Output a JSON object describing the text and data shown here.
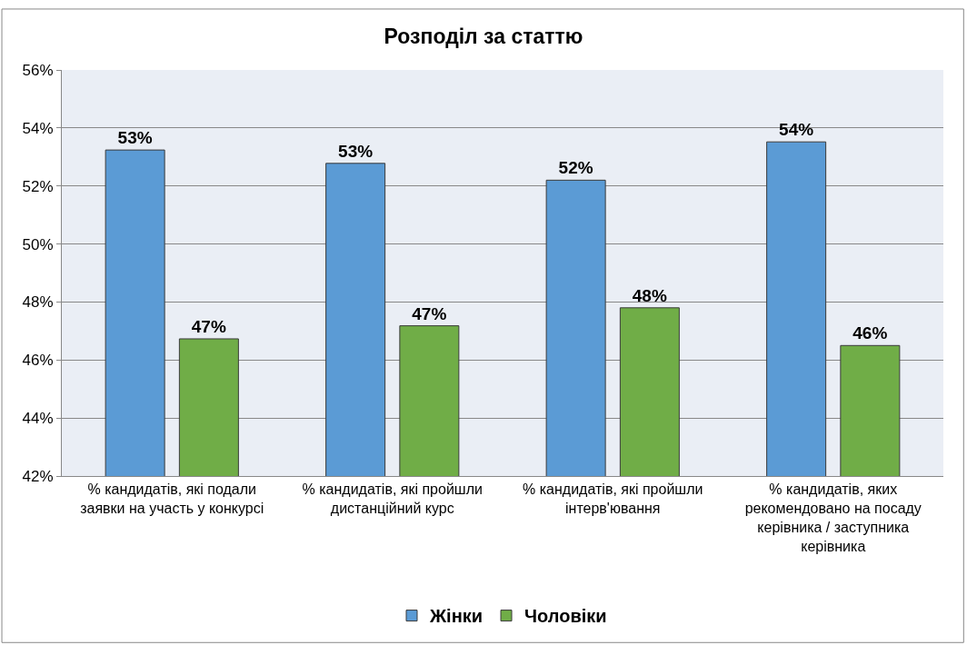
{
  "chart_data": {
    "type": "bar",
    "title": "Розподіл за статтю",
    "categories": [
      "% кандидатів, які подали заявки на участь у конкурсі",
      "% кандидатів, які пройшли дистанційний курс",
      "% кандидатів, які пройшли інтерв'ювання",
      "% кандидатів, яких рекомендовано на посаду керівника / заступника керівника"
    ],
    "series": [
      {
        "name": "Жінки",
        "color": "#5b9bd5",
        "values": [
          53.24,
          52.78,
          52.2,
          53.52
        ],
        "value_labels": [
          "53%",
          "53%",
          "52%",
          "54%"
        ]
      },
      {
        "name": "Чоловіки",
        "color": "#70ad47",
        "values": [
          46.73,
          47.18,
          47.8,
          46.5
        ],
        "value_labels": [
          "47%",
          "47%",
          "48%",
          "46%"
        ]
      }
    ],
    "ylim": [
      42,
      56
    ],
    "yticks": [
      {
        "value": 42,
        "label": "42%"
      },
      {
        "value": 44,
        "label": "44%"
      },
      {
        "value": 46,
        "label": "46%"
      },
      {
        "value": 48,
        "label": "48%"
      },
      {
        "value": 50,
        "label": "50%"
      },
      {
        "value": 52,
        "label": "52%"
      },
      {
        "value": 54,
        "label": "54%"
      },
      {
        "value": 56,
        "label": "56%"
      }
    ],
    "grid": "y",
    "legend": "bottom"
  }
}
